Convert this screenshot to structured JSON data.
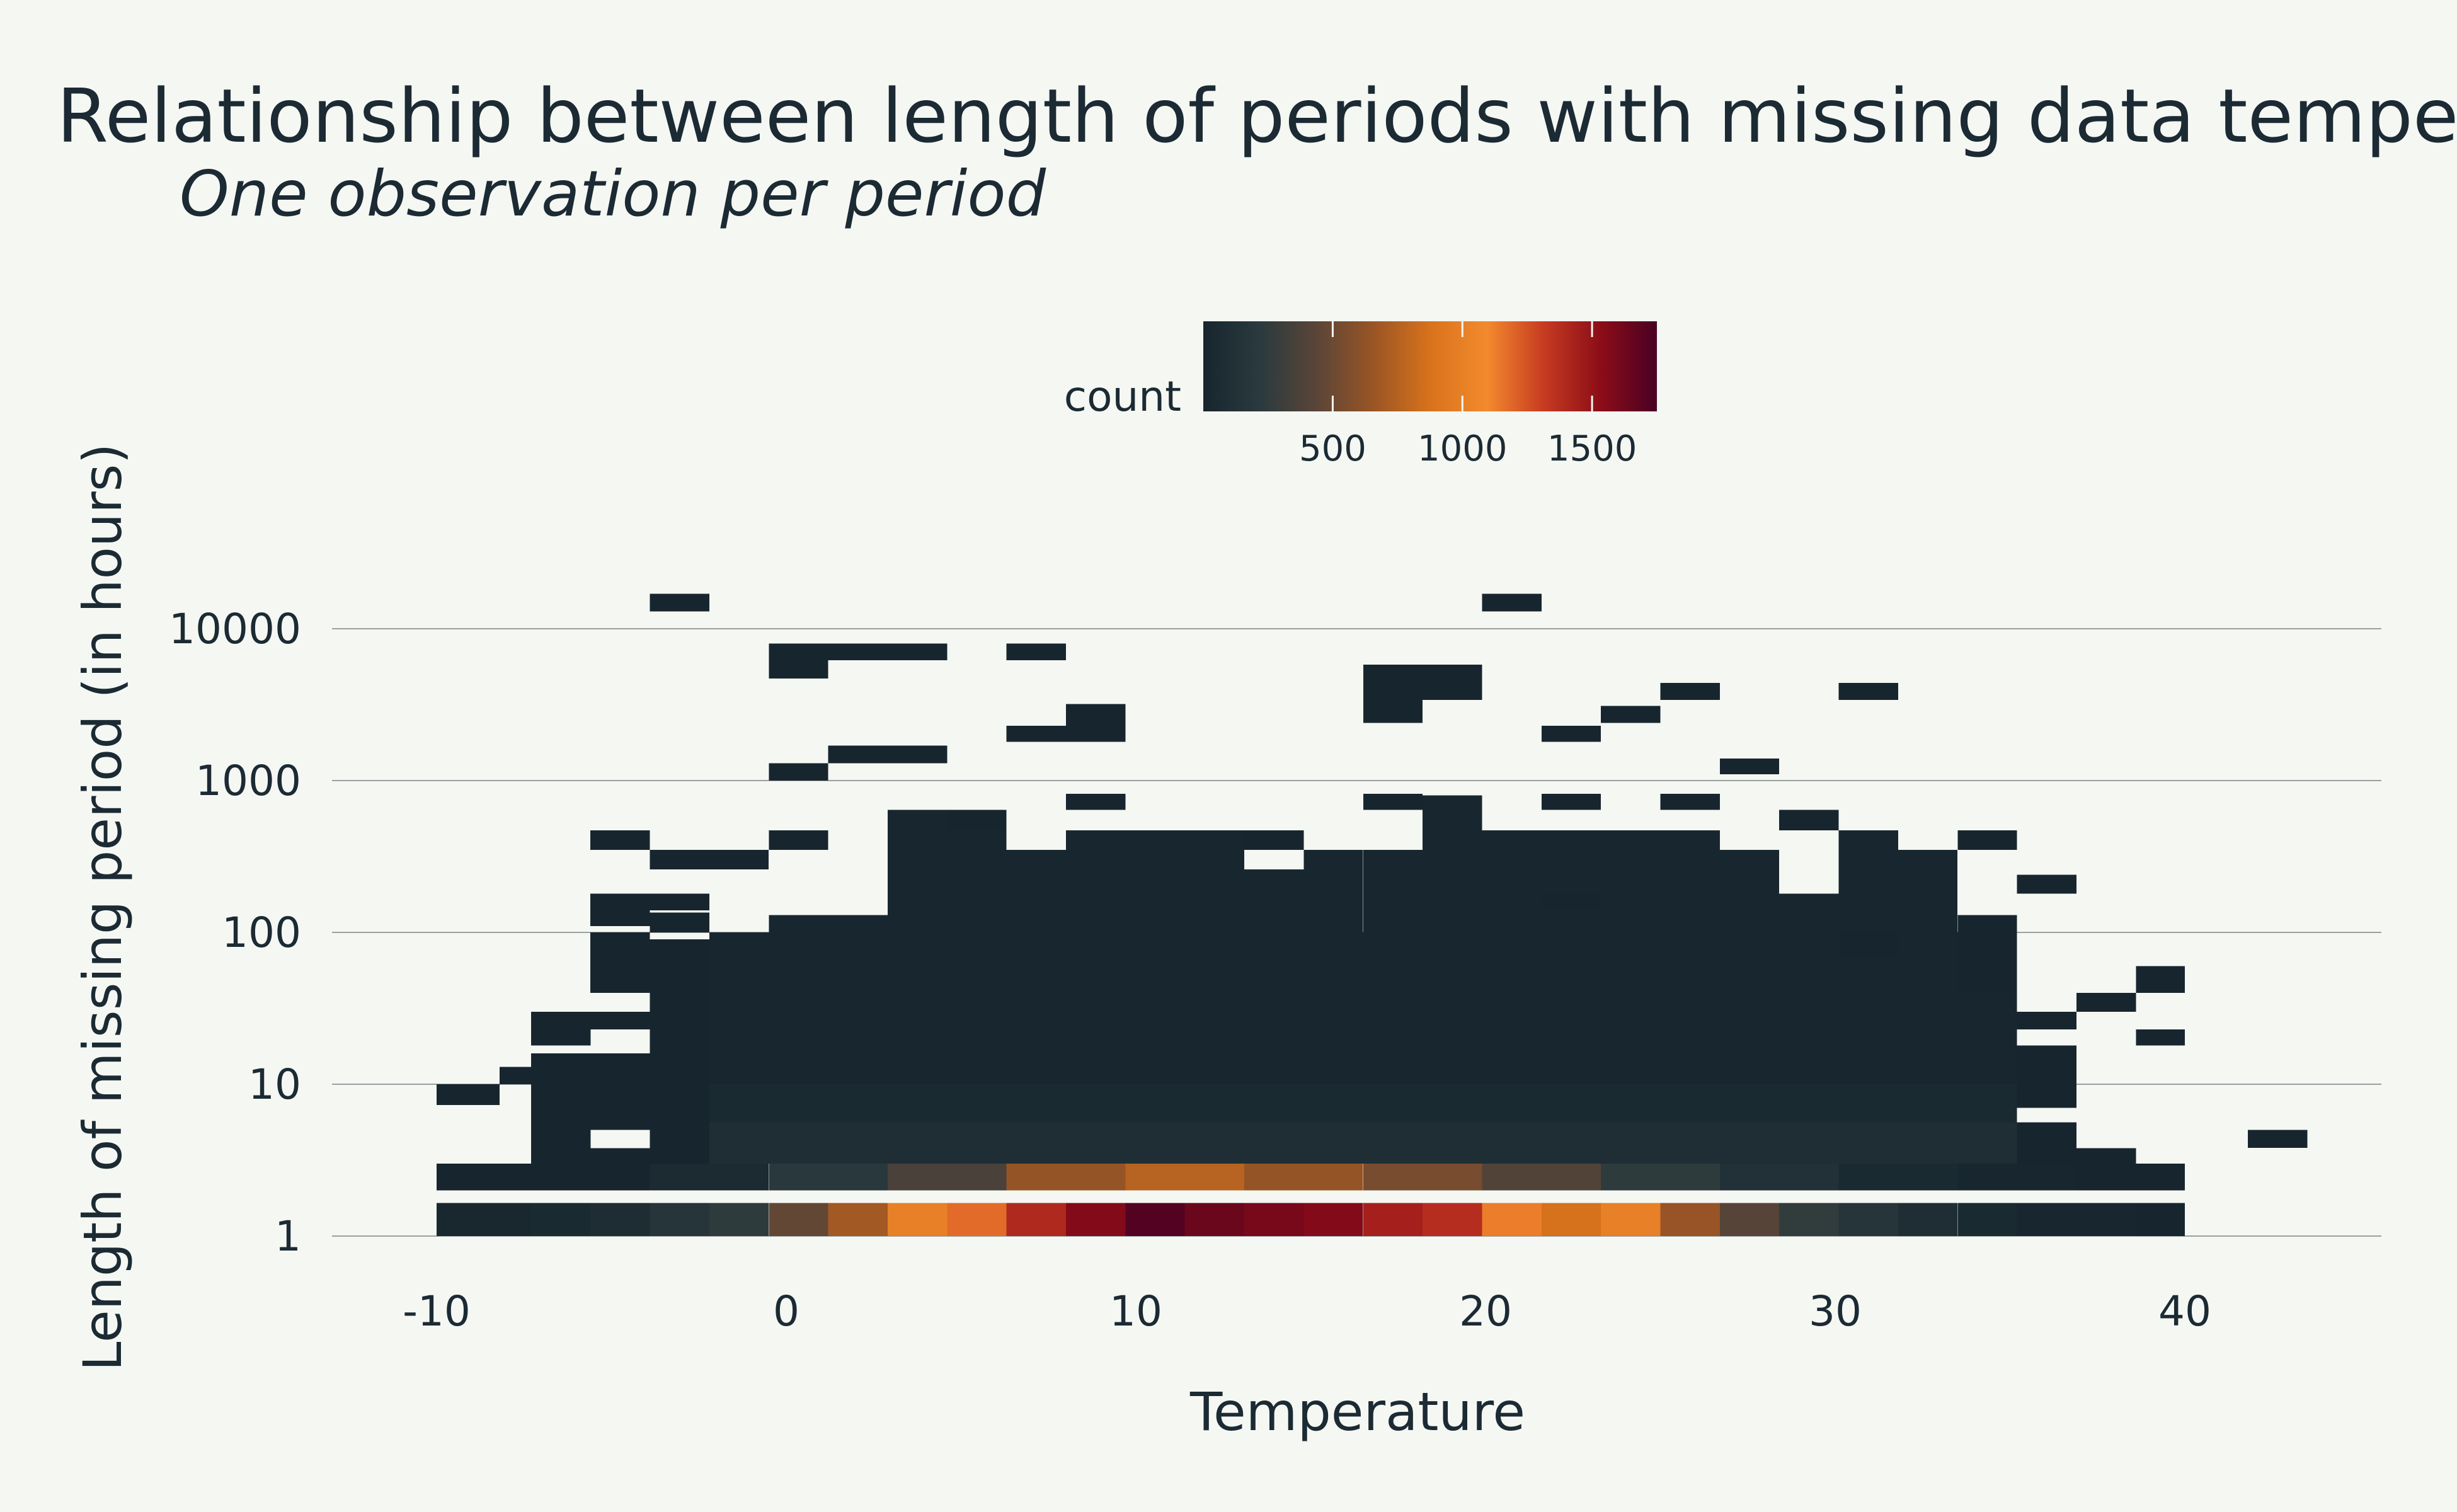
{
  "chart_data": {
    "type": "heatmap",
    "title": "Relationship between length of periods with missing data tempe",
    "subtitle": "One observation per period",
    "xlabel": "Temperature",
    "ylabel": "Length of missing period (in hours)",
    "x_ticks": [
      "-10",
      "0",
      "10",
      "20",
      "30",
      "40"
    ],
    "y_ticks": [
      "1",
      "10",
      "100",
      "1000",
      "10000"
    ],
    "x_scale": "linear",
    "y_scale": "log10",
    "xlim": [
      -13,
      46
    ],
    "ylim": [
      1,
      25000
    ],
    "grid": "horizontal",
    "bin_width": 1.72,
    "x_origin": -10.62,
    "legend": {
      "title": "count",
      "position": "top",
      "ticks": [
        "500",
        "1000",
        "1500"
      ],
      "range": [
        1,
        1750
      ],
      "colors": [
        "#17262e",
        "#2a3a3e",
        "#5a4538",
        "#9a5525",
        "#d8721c",
        "#f38a2d",
        "#c73b22",
        "#8c0d17",
        "#4a0024"
      ]
    },
    "cells": [
      [
        -10,
        -7.3,
        1.0,
        1.65,
        20
      ],
      [
        -7.3,
        -5.6,
        1.0,
        1.65,
        40
      ],
      [
        -5.6,
        -3.9,
        1.0,
        1.65,
        80
      ],
      [
        -3.9,
        -2.2,
        1.0,
        1.65,
        160
      ],
      [
        -2.2,
        -0.5,
        1.0,
        1.65,
        240
      ],
      [
        -0.5,
        1.2,
        1.0,
        1.65,
        470
      ],
      [
        1.2,
        2.9,
        1.0,
        1.65,
        690
      ],
      [
        2.9,
        4.6,
        1.0,
        1.65,
        1000
      ],
      [
        4.6,
        6.3,
        1.0,
        1.65,
        1180
      ],
      [
        6.3,
        8.0,
        1.0,
        1.65,
        1400
      ],
      [
        8.0,
        9.7,
        1.0,
        1.65,
        1560
      ],
      [
        9.7,
        11.4,
        1.0,
        1.65,
        1720
      ],
      [
        11.4,
        13.1,
        1.0,
        1.65,
        1640
      ],
      [
        13.1,
        14.8,
        1.0,
        1.65,
        1600
      ],
      [
        14.8,
        16.5,
        1.0,
        1.65,
        1560
      ],
      [
        16.5,
        18.2,
        1.0,
        1.65,
        1440
      ],
      [
        18.2,
        19.9,
        1.0,
        1.65,
        1380
      ],
      [
        19.9,
        21.6,
        1.0,
        1.65,
        1130
      ],
      [
        21.6,
        23.3,
        1.0,
        1.65,
        870
      ],
      [
        23.3,
        25.0,
        1.0,
        1.65,
        1000
      ],
      [
        25.0,
        26.7,
        1.0,
        1.65,
        650
      ],
      [
        26.7,
        28.4,
        1.0,
        1.65,
        420
      ],
      [
        28.4,
        30.1,
        1.0,
        1.65,
        250
      ],
      [
        30.1,
        31.8,
        1.0,
        1.65,
        160
      ],
      [
        31.8,
        33.5,
        1.0,
        1.65,
        90
      ],
      [
        33.5,
        35.2,
        1.0,
        1.65,
        40
      ],
      [
        35.2,
        36.9,
        1.0,
        1.65,
        15
      ],
      [
        36.9,
        38.6,
        1.0,
        1.65,
        8
      ],
      [
        38.6,
        40.0,
        1.0,
        1.65,
        3
      ],
      [
        -10,
        -3.9,
        2.0,
        3.0,
        5
      ],
      [
        -3.9,
        -0.5,
        2.0,
        3.0,
        60
      ],
      [
        -0.5,
        2.9,
        2.0,
        3.0,
        200
      ],
      [
        2.9,
        6.3,
        2.0,
        3.0,
        360
      ],
      [
        6.3,
        9.7,
        2.0,
        3.0,
        640
      ],
      [
        9.7,
        13.1,
        2.0,
        3.0,
        760
      ],
      [
        13.1,
        16.5,
        2.0,
        3.0,
        640
      ],
      [
        16.5,
        19.9,
        2.0,
        3.0,
        540
      ],
      [
        19.9,
        23.3,
        2.0,
        3.0,
        400
      ],
      [
        23.3,
        26.7,
        2.0,
        3.0,
        240
      ],
      [
        26.7,
        30.1,
        2.0,
        3.0,
        120
      ],
      [
        30.1,
        33.5,
        2.0,
        3.0,
        40
      ],
      [
        33.5,
        36.9,
        2.0,
        3.0,
        10
      ],
      [
        36.9,
        40.0,
        2.0,
        3.0,
        3
      ],
      [
        -7.3,
        -5.6,
        3.0,
        16,
        2
      ],
      [
        -5.6,
        -3.9,
        5,
        16,
        4
      ],
      [
        -5.6,
        -3.9,
        3.0,
        3.8,
        4
      ],
      [
        -3.9,
        -2.2,
        3.0,
        10,
        6
      ],
      [
        -3.9,
        -2.2,
        10,
        16,
        6
      ],
      [
        -2.2,
        35.2,
        3.0,
        5.6,
        90
      ],
      [
        -2.2,
        35.2,
        5.6,
        10,
        40
      ],
      [
        -2.2,
        35.2,
        10,
        100,
        15
      ],
      [
        35.2,
        36.9,
        3.0,
        5.6,
        5
      ],
      [
        35.2,
        36.9,
        7,
        18,
        5
      ],
      [
        36.9,
        38.6,
        3.0,
        3.8,
        3
      ],
      [
        41.8,
        43.5,
        3.8,
        5,
        2
      ],
      [
        -10,
        -8.2,
        7.3,
        10,
        2
      ],
      [
        -8.2,
        -3.9,
        10,
        13,
        2
      ],
      [
        -7.3,
        -5.6,
        18,
        30,
        2
      ],
      [
        -5.6,
        -3.9,
        23,
        30,
        2
      ],
      [
        -2.2,
        -0.5,
        16,
        100,
        8
      ],
      [
        -3.9,
        -2.2,
        16,
        90,
        6
      ],
      [
        -5.6,
        -3.9,
        40,
        100,
        3
      ],
      [
        -3.9,
        -2.2,
        100,
        135,
        3
      ],
      [
        -0.5,
        2.9,
        100,
        130,
        10
      ],
      [
        2.9,
        4.6,
        100,
        640,
        10
      ],
      [
        4.6,
        6.3,
        100,
        470,
        10
      ],
      [
        6.3,
        8.0,
        100,
        350,
        10
      ],
      [
        8.0,
        13.1,
        100,
        470,
        10
      ],
      [
        13.1,
        14.8,
        100,
        260,
        10
      ],
      [
        14.8,
        16.5,
        100,
        350,
        10
      ],
      [
        16.5,
        18.2,
        100,
        350,
        10
      ],
      [
        18.2,
        19.9,
        100,
        800,
        10
      ],
      [
        19.9,
        26.7,
        100,
        470,
        10
      ],
      [
        26.7,
        28.4,
        100,
        350,
        10
      ],
      [
        28.4,
        30.1,
        100,
        180,
        10
      ],
      [
        30.1,
        31.8,
        100,
        470,
        10
      ],
      [
        31.8,
        33.5,
        100,
        350,
        10
      ],
      [
        33.5,
        35.2,
        100,
        130,
        6
      ],
      [
        30.1,
        31.8,
        70,
        100,
        6
      ],
      [
        33.5,
        35.2,
        40,
        100,
        6
      ],
      [
        -5.6,
        -3.9,
        350,
        470,
        2
      ],
      [
        -3.9,
        -0.5,
        260,
        350,
        2
      ],
      [
        -0.5,
        1.2,
        350,
        470,
        2
      ],
      [
        4.6,
        6.3,
        470,
        640,
        2
      ],
      [
        13.1,
        14.8,
        350,
        470,
        2
      ],
      [
        21.6,
        23.3,
        140,
        180,
        2
      ],
      [
        35.2,
        36.9,
        180,
        240,
        2
      ],
      [
        33.5,
        35.2,
        350,
        470,
        2
      ],
      [
        28.4,
        30.1,
        470,
        640,
        2
      ],
      [
        35.2,
        36.9,
        23,
        30,
        2
      ],
      [
        36.9,
        38.6,
        30,
        40,
        2
      ],
      [
        38.6,
        40.0,
        40,
        60,
        2
      ],
      [
        38.6,
        40.0,
        18,
        23,
        2
      ],
      [
        -5.6,
        -3.9,
        110,
        180,
        2
      ],
      [
        -3.9,
        -2.2,
        140,
        180,
        2
      ],
      [
        -0.5,
        1.2,
        1000,
        1300,
        2
      ],
      [
        1.2,
        2.9,
        1300,
        1700,
        2
      ],
      [
        2.9,
        4.6,
        1300,
        1700,
        2
      ],
      [
        -0.5,
        1.2,
        4700,
        8000,
        2
      ],
      [
        1.2,
        2.9,
        6200,
        8000,
        2
      ],
      [
        2.9,
        4.6,
        6200,
        8000,
        2
      ],
      [
        -3.9,
        -2.2,
        13000,
        17000,
        2
      ],
      [
        6.3,
        8.0,
        6200,
        8000,
        2
      ],
      [
        6.3,
        8.0,
        1800,
        2300,
        2
      ],
      [
        8.0,
        9.7,
        1800,
        3200,
        2
      ],
      [
        8.0,
        9.7,
        640,
        820,
        2
      ],
      [
        16.5,
        18.2,
        2400,
        5800,
        2
      ],
      [
        18.2,
        19.9,
        3400,
        5800,
        2
      ],
      [
        19.9,
        21.6,
        13000,
        17000,
        2
      ],
      [
        21.6,
        23.3,
        1800,
        2300,
        2
      ],
      [
        23.3,
        25.0,
        2400,
        3100,
        2
      ],
      [
        25.0,
        26.7,
        3400,
        4400,
        2
      ],
      [
        26.7,
        28.4,
        1100,
        1400,
        2
      ],
      [
        21.6,
        23.3,
        640,
        820,
        2
      ],
      [
        25.0,
        26.7,
        640,
        820,
        2
      ],
      [
        16.5,
        18.2,
        640,
        820,
        2
      ],
      [
        30.1,
        31.8,
        3400,
        4400,
        2
      ]
    ]
  }
}
